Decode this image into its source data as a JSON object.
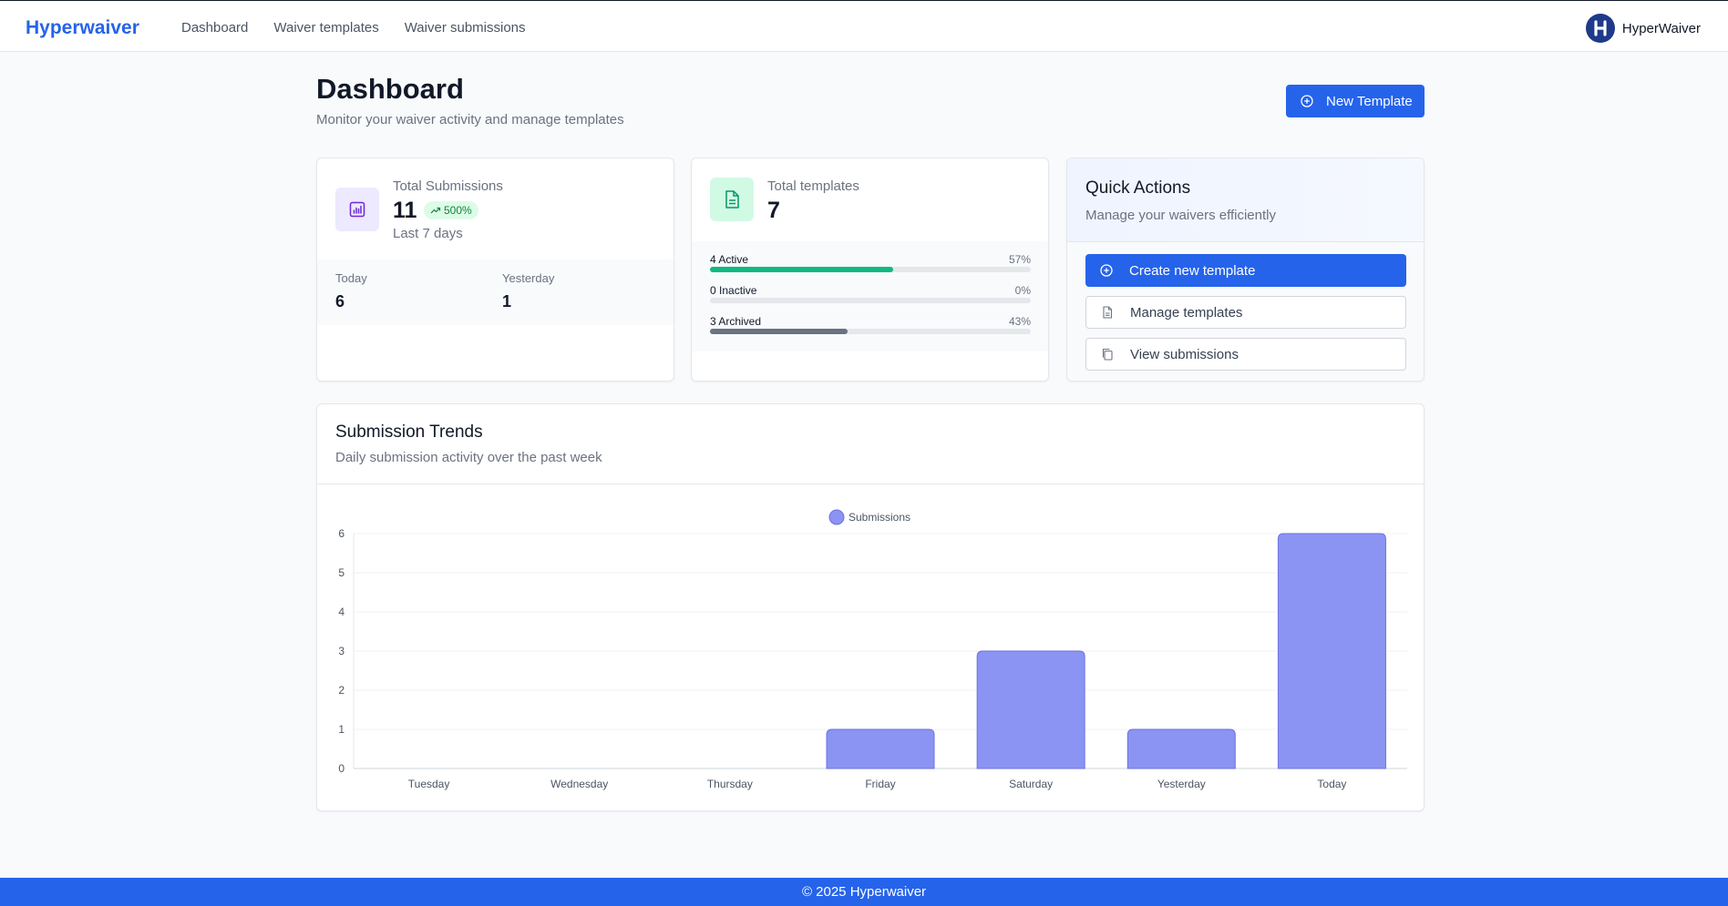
{
  "header": {
    "brand": "Hyperwaiver",
    "nav": [
      "Dashboard",
      "Waiver templates",
      "Waiver submissions"
    ],
    "account_name": "HyperWaiver"
  },
  "page": {
    "title": "Dashboard",
    "subtitle": "Monitor your waiver activity and manage templates",
    "new_template_label": "New Template"
  },
  "submissions_card": {
    "label": "Total Submissions",
    "value": "11",
    "change": "500%",
    "period": "Last 7 days",
    "today_label": "Today",
    "today_value": "6",
    "yesterday_label": "Yesterday",
    "yesterday_value": "1"
  },
  "templates_card": {
    "label": "Total templates",
    "value": "7",
    "rows": [
      {
        "label": "4 Active",
        "pct": "57%",
        "fraction": 0.57,
        "color": "#10b981"
      },
      {
        "label": "0 Inactive",
        "pct": "0%",
        "fraction": 0,
        "color": "#9ca3af"
      },
      {
        "label": "3 Archived",
        "pct": "43%",
        "fraction": 0.43,
        "color": "#6b7280"
      }
    ]
  },
  "quick_actions": {
    "title": "Quick Actions",
    "subtitle": "Manage your waivers efficiently",
    "create_label": "Create new template",
    "manage_label": "Manage templates",
    "view_label": "View submissions"
  },
  "trends": {
    "title": "Submission Trends",
    "subtitle": "Daily submission activity over the past week"
  },
  "chart_data": {
    "type": "bar",
    "categories": [
      "Tuesday",
      "Wednesday",
      "Thursday",
      "Friday",
      "Saturday",
      "Yesterday",
      "Today"
    ],
    "series": [
      {
        "name": "Submissions",
        "values": [
          0,
          0,
          0,
          1,
          3,
          1,
          6
        ]
      }
    ],
    "yticks": [
      "0",
      "1",
      "2",
      "3",
      "4",
      "5",
      "6"
    ],
    "ylim": [
      0,
      6
    ],
    "legend": "top-center",
    "bar_color": "#8b93f3"
  },
  "footer": {
    "text": "© 2025 Hyperwaiver"
  },
  "colors": {
    "accent": "#2563eb"
  }
}
